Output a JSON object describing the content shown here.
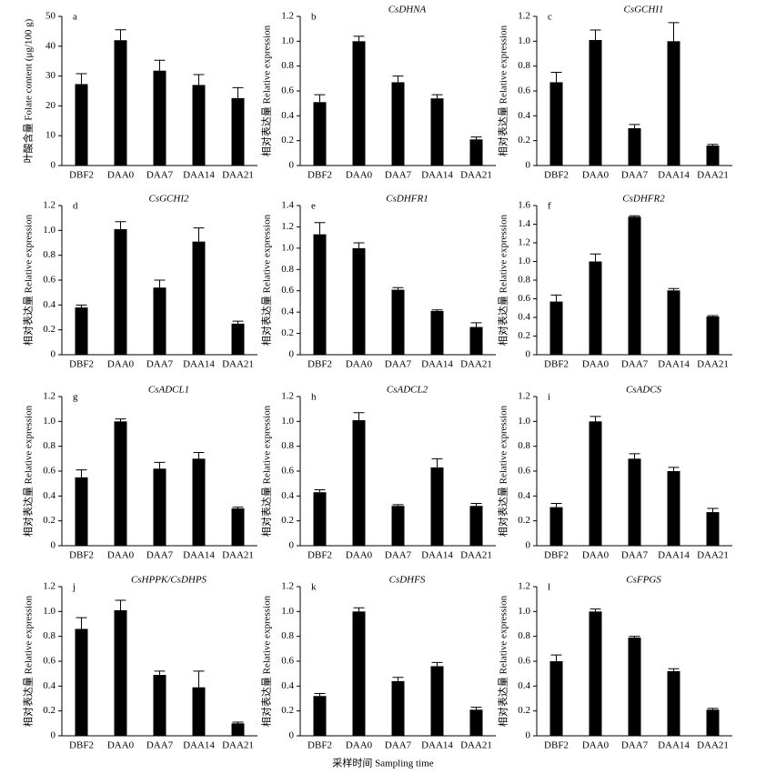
{
  "xlabel": "采样时间 Sampling time",
  "chart_data": [
    {
      "type": "bar",
      "label": "a",
      "ylabel": "叶酸含量 Folate content (μg/100 g)",
      "color": "#000000",
      "categories": [
        "DBF2",
        "DAA0",
        "DAA7",
        "DAA14",
        "DAA21"
      ],
      "values": [
        27.3,
        42,
        31.8,
        27,
        22.6
      ],
      "errors": [
        3.5,
        3.5,
        3.5,
        3.5,
        3.5
      ],
      "ylim": [
        0,
        50
      ],
      "yticks": [
        0,
        10,
        20,
        30,
        40,
        50
      ]
    },
    {
      "type": "bar",
      "label": "b",
      "title": "CsDHNA",
      "ylabel": "相对表达量 Relative expression",
      "color": "#000000",
      "categories": [
        "DBF2",
        "DAA0",
        "DAA7",
        "DAA14",
        "DAA21"
      ],
      "values": [
        0.51,
        1.0,
        0.67,
        0.54,
        0.21
      ],
      "errors": [
        0.06,
        0.04,
        0.05,
        0.03,
        0.02
      ],
      "ylim": [
        0,
        1.2
      ],
      "yticks": [
        0,
        0.2,
        0.4,
        0.6,
        0.8,
        {
          "value": 1,
          "label": "1.0"
        },
        1.2
      ]
    },
    {
      "type": "bar",
      "label": "c",
      "title": "CsGCHI1",
      "ylabel": "相对表达量 Relative expression",
      "color": "#000000",
      "categories": [
        "DBF2",
        "DAA0",
        "DAA7",
        "DAA14",
        "DAA21"
      ],
      "values": [
        0.67,
        1.01,
        0.3,
        1.0,
        0.16
      ],
      "errors": [
        0.08,
        0.08,
        0.03,
        0.15,
        0.01
      ],
      "ylim": [
        0,
        1.2
      ],
      "yticks": [
        0,
        0.2,
        0.4,
        0.6,
        0.8,
        {
          "value": 1,
          "label": "1.0"
        },
        1.2
      ]
    },
    {
      "type": "bar",
      "label": "d",
      "title": "CsGCHI2",
      "ylabel": "相对表达量 Relative expression",
      "color": "#000000",
      "categories": [
        "DBF2",
        "DAA0",
        "DAA7",
        "DAA14",
        "DAA21"
      ],
      "values": [
        0.38,
        1.01,
        0.54,
        0.91,
        0.25
      ],
      "errors": [
        0.02,
        0.06,
        0.06,
        0.11,
        0.02
      ],
      "ylim": [
        0,
        1.2
      ],
      "yticks": [
        0,
        0.2,
        0.4,
        0.6,
        0.8,
        {
          "value": 1,
          "label": "1.0"
        },
        1.2
      ]
    },
    {
      "type": "bar",
      "label": "e",
      "title": "CsDHFR1",
      "ylabel": "相对表达量 Relative expression",
      "color": "#000000",
      "categories": [
        "DBF2",
        "DAA0",
        "DAA7",
        "DAA14",
        "DAA21"
      ],
      "values": [
        1.13,
        1.0,
        0.61,
        0.41,
        0.26
      ],
      "errors": [
        0.11,
        0.05,
        0.02,
        0.01,
        0.04
      ],
      "ylim": [
        0,
        1.4
      ],
      "yticks": [
        0,
        0.2,
        0.4,
        0.6,
        0.8,
        {
          "value": 1,
          "label": "1.0"
        },
        1.2,
        1.4
      ]
    },
    {
      "type": "bar",
      "label": "f",
      "title": "CsDHFR2",
      "ylabel": "相对表达量 Relative expression",
      "color": "#000000",
      "categories": [
        "DBF2",
        "DAA0",
        "DAA7",
        "DAA14",
        "DAA21"
      ],
      "values": [
        0.57,
        1.0,
        1.48,
        0.69,
        0.41
      ],
      "errors": [
        0.07,
        0.08,
        0.01,
        0.02,
        0.01
      ],
      "ylim": [
        0,
        1.6
      ],
      "yticks": [
        0,
        0.2,
        0.4,
        0.6,
        0.8,
        {
          "value": 1,
          "label": "1.0"
        },
        1.2,
        1.4,
        1.6
      ]
    },
    {
      "type": "bar",
      "label": "g",
      "title": "CsADCL1",
      "ylabel": "相对表达量 Relative expression",
      "color": "#000000",
      "categories": [
        "DBF2",
        "DAA0",
        "DAA7",
        "DAA14",
        "DAA21"
      ],
      "values": [
        0.55,
        1.0,
        0.62,
        0.7,
        0.3
      ],
      "errors": [
        0.06,
        0.02,
        0.05,
        0.05,
        0.01
      ],
      "ylim": [
        0,
        1.2
      ],
      "yticks": [
        0,
        0.2,
        0.4,
        0.6,
        0.8,
        {
          "value": 1,
          "label": "1.0"
        },
        1.2
      ]
    },
    {
      "type": "bar",
      "label": "h",
      "title": "CsADCL2",
      "ylabel": "相对表达量 Relative expression",
      "color": "#000000",
      "categories": [
        "DBF2",
        "DAA0",
        "DAA7",
        "DAA14",
        "DAA21"
      ],
      "values": [
        0.43,
        1.01,
        0.32,
        0.63,
        0.32
      ],
      "errors": [
        0.02,
        0.06,
        0.01,
        0.07,
        0.02
      ],
      "ylim": [
        0,
        1.2
      ],
      "yticks": [
        0,
        0.2,
        0.4,
        0.6,
        0.8,
        {
          "value": 1,
          "label": "1.0"
        },
        1.2
      ]
    },
    {
      "type": "bar",
      "label": "i",
      "title": "CsADCS",
      "ylabel": "相对表达量 Relative expression",
      "color": "#000000",
      "categories": [
        "DBF2",
        "DAA0",
        "DAA7",
        "DAA14",
        "DAA21"
      ],
      "values": [
        0.31,
        1.0,
        0.7,
        0.6,
        0.27
      ],
      "errors": [
        0.03,
        0.04,
        0.04,
        0.03,
        0.03
      ],
      "ylim": [
        0,
        1.2
      ],
      "yticks": [
        0,
        0.2,
        0.4,
        0.6,
        0.8,
        {
          "value": 1,
          "label": "1.0"
        },
        1.2
      ]
    },
    {
      "type": "bar",
      "label": "j",
      "title": "CsHPPK/CsDHPS",
      "ylabel": "相对表达量 Relative expression",
      "color": "#000000",
      "categories": [
        "DBF2",
        "DAA0",
        "DAA7",
        "DAA14",
        "DAA21"
      ],
      "values": [
        0.86,
        1.01,
        0.49,
        0.39,
        0.1
      ],
      "errors": [
        0.09,
        0.08,
        0.03,
        0.13,
        0.01
      ],
      "ylim": [
        0,
        1.2
      ],
      "yticks": [
        0,
        0.2,
        0.4,
        0.6,
        0.8,
        {
          "value": 1,
          "label": "1.0"
        },
        1.2
      ]
    },
    {
      "type": "bar",
      "label": "k",
      "title": "CsDHFS",
      "ylabel": "相对表达量 Relative expression",
      "color": "#000000",
      "categories": [
        "DBF2",
        "DAA0",
        "DAA7",
        "DAA14",
        "DAA21"
      ],
      "values": [
        0.32,
        1.0,
        0.44,
        0.56,
        0.21
      ],
      "errors": [
        0.02,
        0.03,
        0.03,
        0.03,
        0.02
      ],
      "ylim": [
        0,
        1.2
      ],
      "yticks": [
        0,
        0.2,
        0.4,
        0.6,
        0.8,
        {
          "value": 1,
          "label": "1.0"
        },
        1.2
      ]
    },
    {
      "type": "bar",
      "label": "l",
      "title": "CsFPGS",
      "ylabel": "相对表达量 Relative expression",
      "color": "#000000",
      "categories": [
        "DBF2",
        "DAA0",
        "DAA7",
        "DAA14",
        "DAA21"
      ],
      "values": [
        0.6,
        1.0,
        0.79,
        0.52,
        0.21
      ],
      "errors": [
        0.05,
        0.02,
        0.01,
        0.02,
        0.01
      ],
      "ylim": [
        0,
        1.2
      ],
      "yticks": [
        0,
        0.2,
        0.4,
        0.6,
        0.8,
        {
          "value": 1,
          "label": "1.0"
        },
        1.2
      ]
    }
  ]
}
